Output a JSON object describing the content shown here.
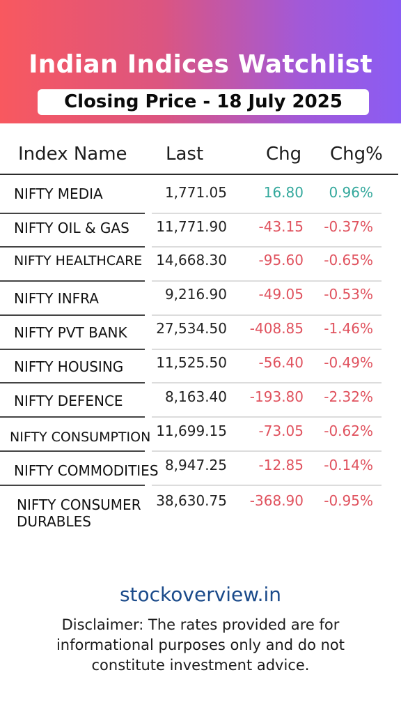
{
  "header": {
    "title": "Indian Indices Watchlist",
    "subtitle": "Closing Price - 18 July 2025"
  },
  "table": {
    "columns": [
      "Index Name",
      "Last",
      "Chg",
      "Chg%"
    ],
    "rows": [
      {
        "name": "NIFTY MEDIA",
        "last": "1,771.05",
        "chg": "16.80",
        "pct": "0.96%",
        "direction": "up"
      },
      {
        "name": "NIFTY OIL & GAS",
        "last": "11,771.90",
        "chg": "-43.15",
        "pct": "-0.37%",
        "direction": "down"
      },
      {
        "name": "NIFTY HEALTHCARE",
        "last": "14,668.30",
        "chg": "-95.60",
        "pct": "-0.65%",
        "direction": "down"
      },
      {
        "name": "NIFTY INFRA",
        "last": "9,216.90",
        "chg": "-49.05",
        "pct": "-0.53%",
        "direction": "down"
      },
      {
        "name": "NIFTY PVT BANK",
        "last": "27,534.50",
        "chg": "-408.85",
        "pct": "-1.46%",
        "direction": "down"
      },
      {
        "name": "NIFTY HOUSING",
        "last": "11,525.50",
        "chg": "-56.40",
        "pct": "-0.49%",
        "direction": "down"
      },
      {
        "name": "NIFTY DEFENCE",
        "last": "8,163.40",
        "chg": "-193.80",
        "pct": "-2.32%",
        "direction": "down"
      },
      {
        "name": "NIFTY CONSUMPTION",
        "last": "11,699.15",
        "chg": "-73.05",
        "pct": "-0.62%",
        "direction": "down"
      },
      {
        "name": "NIFTY COMMODITIES",
        "last": "8,947.25",
        "chg": "-12.85",
        "pct": "-0.14%",
        "direction": "down"
      },
      {
        "name": "NIFTY CONSUMER DURABLES",
        "last": "38,630.75",
        "chg": "-368.90",
        "pct": "-0.95%",
        "direction": "down"
      }
    ]
  },
  "colors": {
    "positive": "#33a89c",
    "negative": "#e0525e",
    "link": "#1a4a8a"
  },
  "footer": {
    "site": "stockoverview.in",
    "disclaimer": "Disclaimer: The rates provided are for informational purposes only and do not constitute investment advice."
  }
}
